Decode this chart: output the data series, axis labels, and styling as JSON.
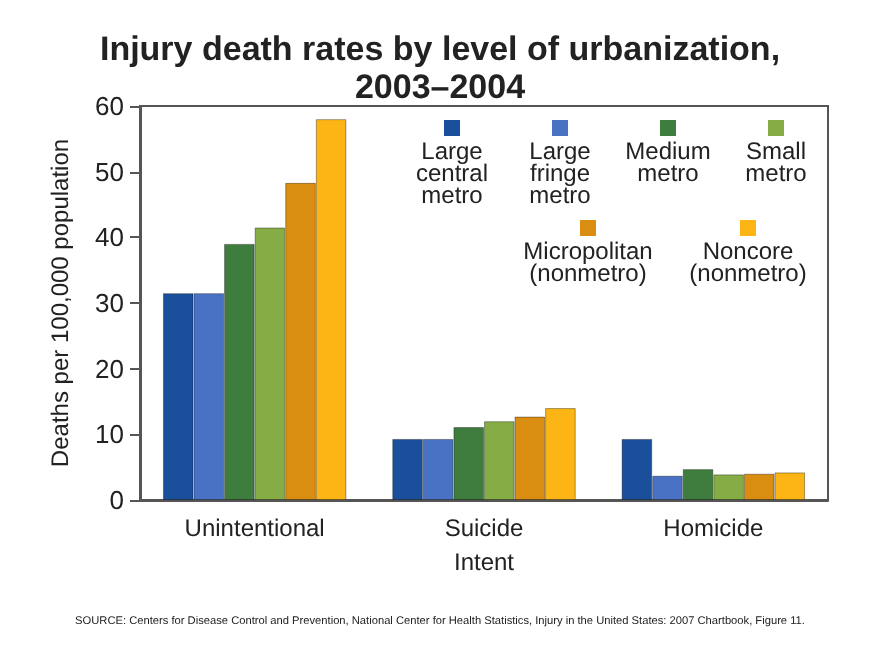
{
  "chart_data": {
    "type": "bar",
    "title": "Injury death rates by level of urbanization, 2003–2004",
    "xlabel": "Intent",
    "ylabel": "Deaths per 100,000 population",
    "categories": [
      "Unintentional",
      "Suicide",
      "Homicide"
    ],
    "series": [
      {
        "name": "Large central metro",
        "color": "#1a4f9c",
        "values": [
          31.5,
          9.3,
          9.3
        ]
      },
      {
        "name": "Large fringe metro",
        "color": "#4a72c4",
        "values": [
          31.5,
          9.3,
          3.7
        ]
      },
      {
        "name": "Medium metro",
        "color": "#3f7d3f",
        "values": [
          39,
          11.1,
          4.7
        ]
      },
      {
        "name": "Small metro",
        "color": "#86ad45",
        "values": [
          41.5,
          12,
          3.9
        ]
      },
      {
        "name": "Micropolitan (nonmetro)",
        "color": "#d98e12",
        "values": [
          48.3,
          12.7,
          4
        ]
      },
      {
        "name": "Noncore (nonmetro)",
        "color": "#fdb515",
        "values": [
          58,
          14,
          4.2
        ]
      }
    ],
    "ylim": [
      0,
      60
    ],
    "yticks": [
      0,
      10,
      20,
      30,
      40,
      50,
      60
    ],
    "grid": false,
    "legend": "top right",
    "annotations": [
      "SOURCE: Centers for Disease Control and Prevention, National Center for Health Statistics, Injury in the United States: 2007 Chartbook, Figure 11."
    ]
  }
}
